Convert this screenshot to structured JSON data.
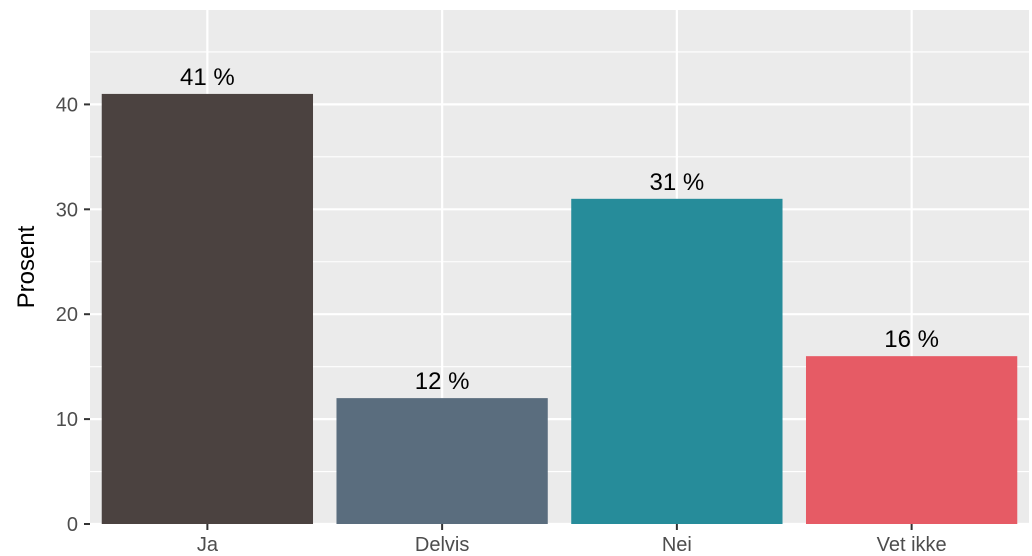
{
  "chart_data": {
    "type": "bar",
    "title": "",
    "xlabel": "",
    "ylabel": "Prosent",
    "categories": [
      "Ja",
      "Delvis",
      "Nei",
      "Vet ikke"
    ],
    "values": [
      41,
      12,
      31,
      16
    ],
    "data_labels": [
      "41 %",
      "12 %",
      "31 %",
      "16 %"
    ],
    "colors": [
      "#4b4240",
      "#5a6d7e",
      "#268c9a",
      "#e65b65"
    ],
    "ylim": [
      0,
      49
    ],
    "yticks": [
      0,
      10,
      20,
      30,
      40
    ],
    "ytick_labels": [
      "0",
      "10",
      "20",
      "30",
      "40"
    ],
    "grid": true,
    "panel_background": "#ebebeb",
    "grid_color": "#ffffff",
    "legend": "none"
  }
}
